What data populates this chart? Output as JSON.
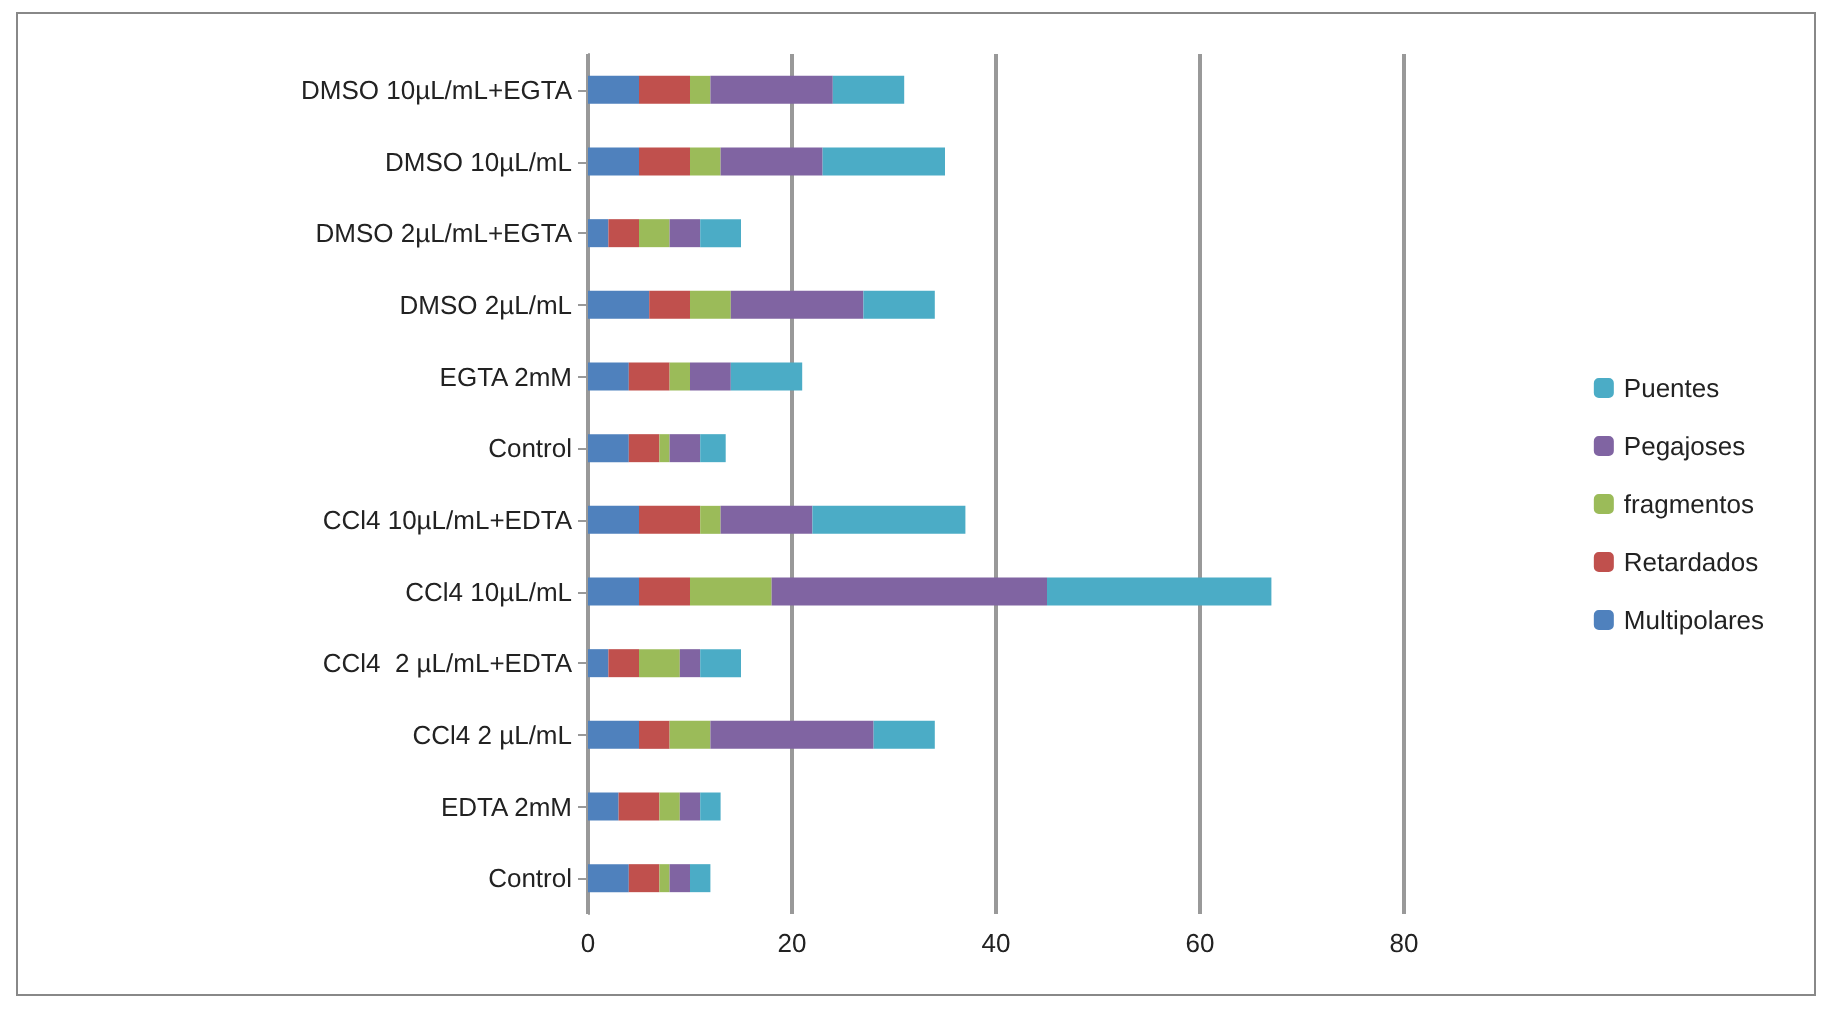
{
  "chart_data": {
    "type": "bar",
    "orientation": "horizontal",
    "stacked": true,
    "categories": [
      "DMSO 10µL/mL+EGTA",
      "DMSO 10µL/mL",
      "DMSO 2µL/mL+EGTA",
      "DMSO 2µL/mL",
      "EGTA 2mM",
      "Control",
      "CCl4 10µL/mL+EDTA",
      "CCl4 10µL/mL",
      "CCl4  2 µL/mL+EDTA",
      "CCl4 2 µL/mL",
      "EDTA 2mM",
      "Control"
    ],
    "series": [
      {
        "name": "Multipolares",
        "color": "#4f81bd",
        "values": [
          5,
          5,
          2,
          6,
          4,
          4,
          5,
          5,
          2,
          5,
          3,
          4
        ]
      },
      {
        "name": "Retardados",
        "color": "#c0504d",
        "values": [
          5,
          5,
          3,
          4,
          4,
          3,
          6,
          5,
          3,
          3,
          4,
          3
        ]
      },
      {
        "name": "fragmentos",
        "color": "#9bbb59",
        "values": [
          2,
          3,
          3,
          4,
          2,
          1,
          2,
          8,
          4,
          4,
          2,
          1
        ]
      },
      {
        "name": "Pegajoses",
        "color": "#8064a2",
        "values": [
          12,
          10,
          3,
          13,
          4,
          3,
          9,
          27,
          2,
          16,
          2,
          2
        ]
      },
      {
        "name": "Puentes",
        "color": "#4bacc6",
        "values": [
          7,
          12,
          4,
          7,
          7,
          2.5,
          15,
          22,
          4,
          6,
          2,
          2
        ]
      }
    ],
    "xlim": [
      0,
      80
    ],
    "xticks": [
      0,
      20,
      40,
      60,
      80
    ],
    "grid": "x",
    "legend": "right"
  }
}
